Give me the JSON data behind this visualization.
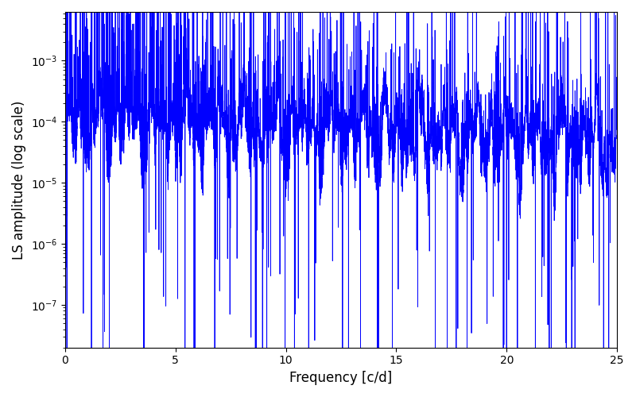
{
  "title": "",
  "xlabel": "Frequency [c/d]",
  "ylabel": "LS amplitude (log scale)",
  "line_color": "#0000ff",
  "line_width": 0.6,
  "xlim": [
    0,
    25
  ],
  "ylim_log": [
    -7.7,
    -2.2
  ],
  "yscale": "log",
  "freq_min": 0.0,
  "freq_max": 25.0,
  "n_points": 8000,
  "seed": 12345,
  "figsize": [
    8.0,
    5.0
  ],
  "dpi": 100,
  "background_color": "#ffffff",
  "yticks": [
    1e-07,
    1e-06,
    1e-05,
    0.0001,
    0.001
  ]
}
